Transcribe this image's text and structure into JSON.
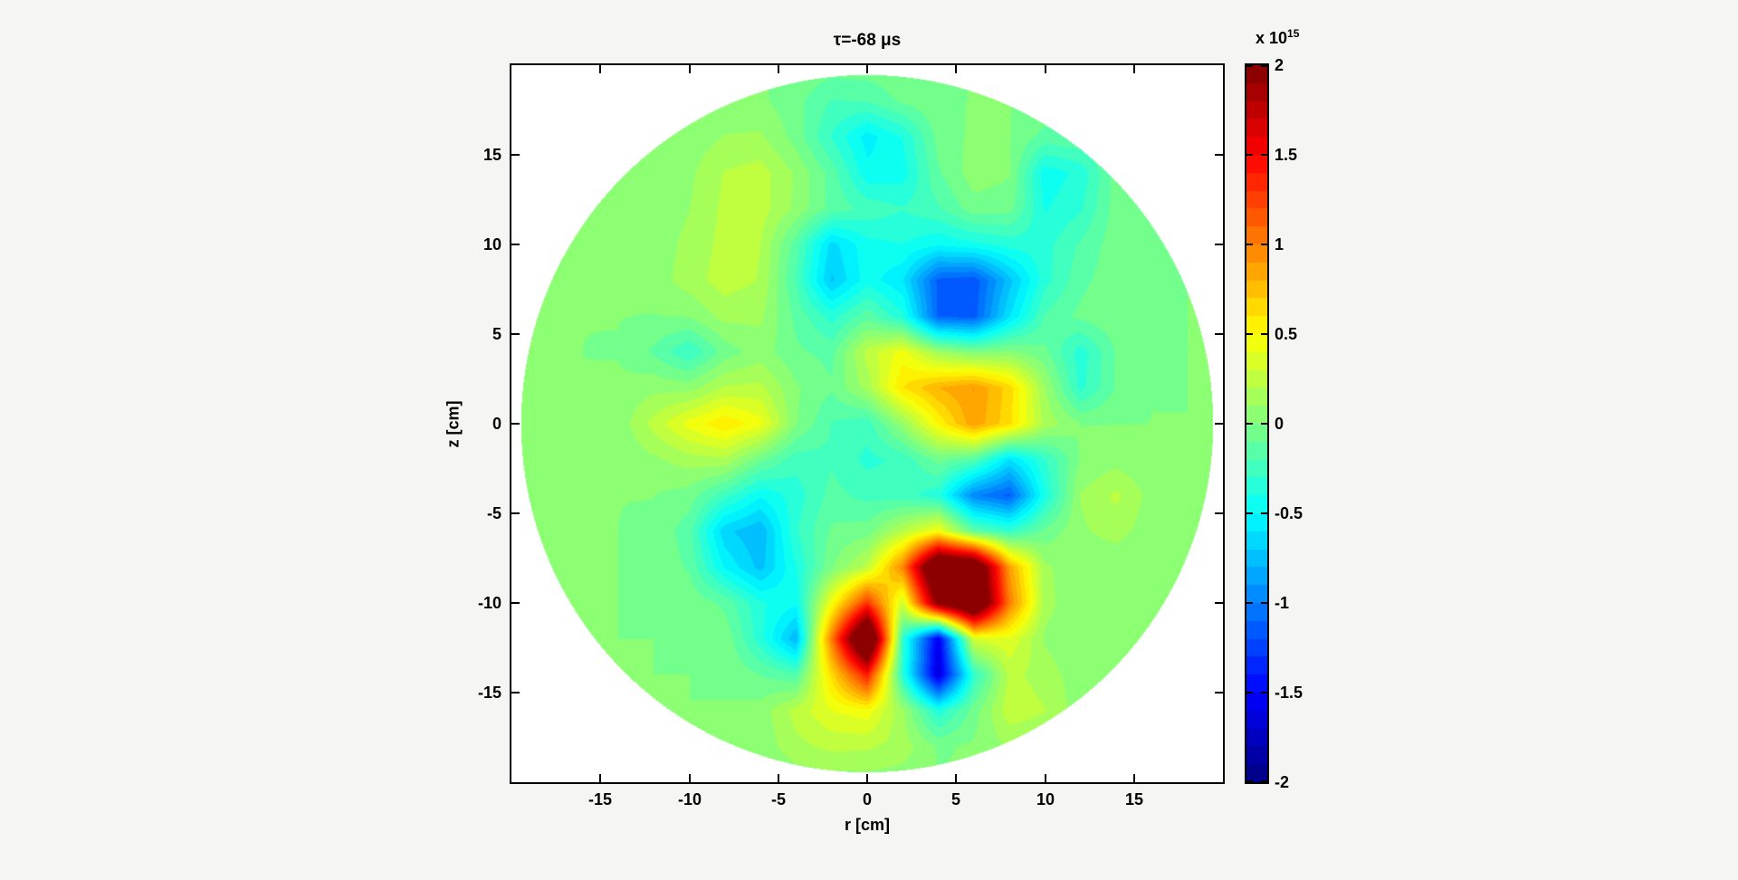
{
  "figure": {
    "title": "τ=-68 μs",
    "xlabel": "r [cm]",
    "ylabel": "z [cm]",
    "x_ticks": [
      -15,
      -10,
      -5,
      0,
      5,
      10,
      15
    ],
    "y_ticks": [
      15,
      10,
      5,
      0,
      -5,
      -10,
      -15
    ],
    "colorbar": {
      "scale_prefix": "x 10",
      "scale_exponent": "15",
      "ticks": [
        2,
        1.5,
        1,
        0.5,
        0,
        -0.5,
        -1,
        -1.5,
        -2
      ],
      "min": -2,
      "max": 2
    },
    "colors": {
      "figure_background": "#f5f5f3",
      "axes_background": "#ffffff",
      "axis_line": "#000000",
      "zero_level_green": "#73ff8c",
      "max_dark_red": "#800000",
      "min_dark_blue": "#000080"
    }
  },
  "chart_data": {
    "type": "heatmap",
    "subtype": "filled-contour",
    "title": "τ=-68 μs",
    "xlabel": "r [cm]",
    "ylabel": "z [cm]",
    "xlim": [
      -20,
      20
    ],
    "ylim": [
      -20,
      20
    ],
    "value_scale": 1000000000000000.0,
    "clim": [
      -2,
      2
    ],
    "contour_interval": 0.1,
    "colormap": "jet",
    "domain_shape": "disk",
    "domain_radius_cm": 19.45,
    "background_value": 0,
    "grid_spacing_cm": 2,
    "features_note": "gaussian bumps: r,z in cm; a = peak amplitude in units of 1e15; s = sigma in cm",
    "features": [
      {
        "r": 5,
        "z": -9,
        "a": 3.6,
        "s": 2.0
      },
      {
        "r": 0,
        "z": -12,
        "a": 2.9,
        "s": 1.6
      },
      {
        "r": 3.5,
        "z": -12.5,
        "a": -3.0,
        "s": 1.5
      },
      {
        "r": 2,
        "z": -10.5,
        "a": -1.0,
        "s": 1.0
      },
      {
        "r": -4,
        "z": -12,
        "a": -0.9,
        "s": 1.4
      },
      {
        "r": 8,
        "z": -3,
        "a": -1.1,
        "s": 1.6
      },
      {
        "r": 6,
        "z": -5.5,
        "a": -1.1,
        "s": 1.6
      },
      {
        "r": 7,
        "z": 0.5,
        "a": 0.9,
        "s": 1.9
      },
      {
        "r": 4,
        "z": 2,
        "a": 0.55,
        "s": 2.2
      },
      {
        "r": 1.5,
        "z": 3.5,
        "a": 0.5,
        "s": 1.9
      },
      {
        "r": 4,
        "z": 6.5,
        "a": -1.05,
        "s": 1.8
      },
      {
        "r": 6.5,
        "z": 7,
        "a": -0.8,
        "s": 1.8
      },
      {
        "r": -2,
        "z": 9,
        "a": -0.75,
        "s": 1.5
      },
      {
        "r": -7,
        "z": 0,
        "a": 0.6,
        "s": 1.6
      },
      {
        "r": -10.5,
        "z": 0.5,
        "a": 0.4,
        "s": 1.6
      },
      {
        "r": -7,
        "z": -6.5,
        "a": -0.8,
        "s": 1.7
      },
      {
        "r": -5,
        "z": -3,
        "a": -0.4,
        "s": 1.6
      },
      {
        "r": -5,
        "z": -8.5,
        "a": -0.35,
        "s": 1.6
      },
      {
        "r": 1,
        "z": 15,
        "a": -0.55,
        "s": 1.4
      },
      {
        "r": 10.5,
        "z": 13.5,
        "a": -0.6,
        "s": 1.6
      },
      {
        "r": 12,
        "z": 3,
        "a": -0.5,
        "s": 1.2
      },
      {
        "r": -10,
        "z": 3.5,
        "a": -0.4,
        "s": 1.5
      },
      {
        "r": 1.5,
        "z": -2.5,
        "a": -0.35,
        "s": 2.4
      },
      {
        "r": 2.5,
        "z": 10.5,
        "a": -0.3,
        "s": 2.4
      },
      {
        "r": 9.5,
        "z": 9.5,
        "a": -0.3,
        "s": 2.2
      },
      {
        "r": -1.5,
        "z": 16.5,
        "a": -0.3,
        "s": 1.8
      },
      {
        "r": 4,
        "z": -15.5,
        "a": -0.35,
        "s": 1.5
      },
      {
        "r": -6.5,
        "z": 13.5,
        "a": 0.25,
        "s": 2.2
      },
      {
        "r": -7.5,
        "z": 8,
        "a": 0.25,
        "s": 2.5
      },
      {
        "r": 1,
        "z": -16,
        "a": 0.35,
        "s": 2.0
      },
      {
        "r": -3,
        "z": -16.5,
        "a": 0.3,
        "s": 1.6
      },
      {
        "r": 8.5,
        "z": -15.5,
        "a": 0.3,
        "s": 1.8
      },
      {
        "r": 13.5,
        "z": -4.5,
        "a": 0.25,
        "s": 1.5
      },
      {
        "r": 8,
        "z": 13,
        "a": 0.25,
        "s": 1.8
      },
      {
        "r": -2,
        "z": 5.5,
        "a": -0.3,
        "s": 1.8
      },
      {
        "r": -0.5,
        "z": 0.5,
        "a": -0.25,
        "s": 1.6
      }
    ]
  }
}
